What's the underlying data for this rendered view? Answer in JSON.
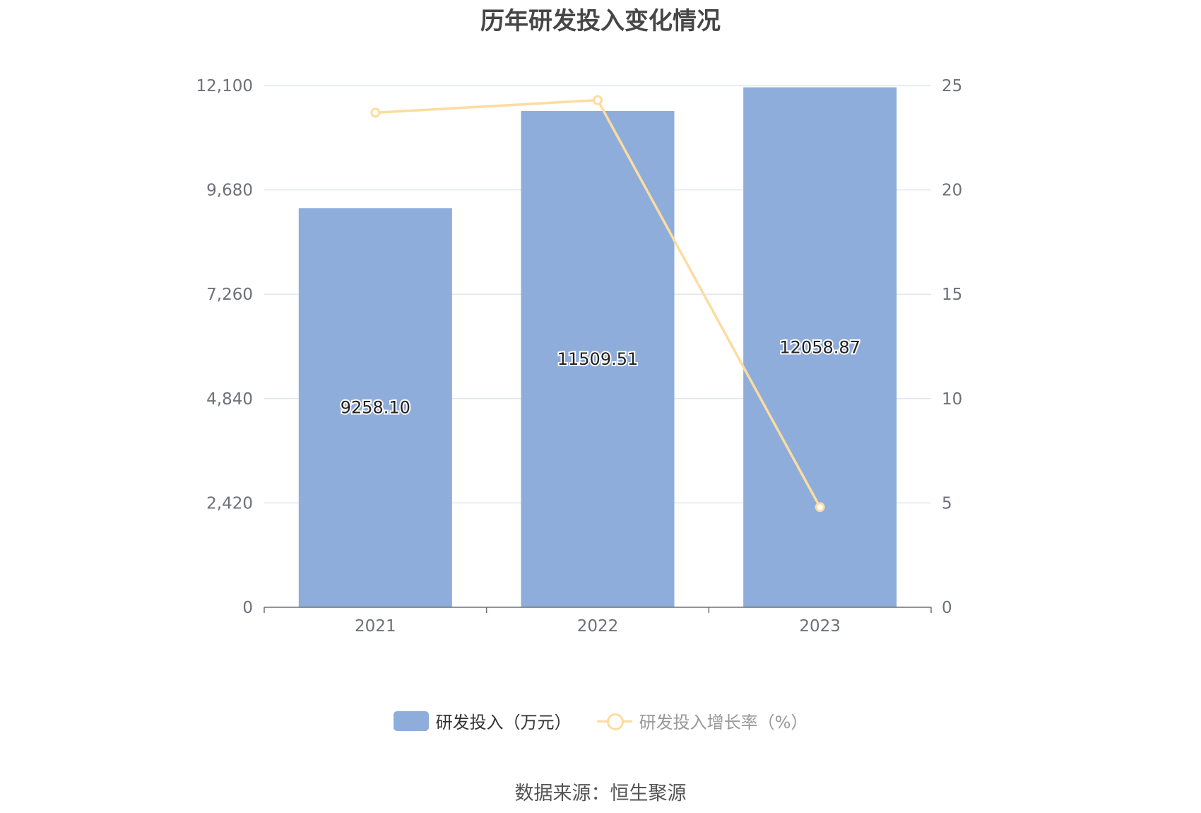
{
  "chart_data": {
    "type": "bar",
    "title": "历年研发投入变化情况",
    "categories": [
      "2021",
      "2022",
      "2023"
    ],
    "series": [
      {
        "name": "研发投入（万元）",
        "type": "bar",
        "axis": "left",
        "values": [
          9258.1,
          11509.51,
          12058.87
        ],
        "labels": [
          "9258.10",
          "11509.51",
          "12058.87"
        ],
        "color": "#8eaddb"
      },
      {
        "name": "研发投入增长率（%）",
        "type": "line",
        "axis": "right",
        "values": [
          23.7,
          24.3,
          4.8
        ],
        "color": "#fcdca0"
      }
    ],
    "y_left": {
      "min": 0,
      "max": 12100,
      "ticks": [
        "0",
        "2,420",
        "4,840",
        "7,260",
        "9,680",
        "12,100"
      ]
    },
    "y_right": {
      "min": 0,
      "max": 25,
      "ticks": [
        "0",
        "5",
        "10",
        "15",
        "20",
        "25"
      ]
    },
    "grid": true,
    "legend_position": "bottom"
  },
  "legend_text_colors": {
    "bar": "#333333",
    "line": "#999999"
  },
  "source": "数据来源：恒生聚源"
}
